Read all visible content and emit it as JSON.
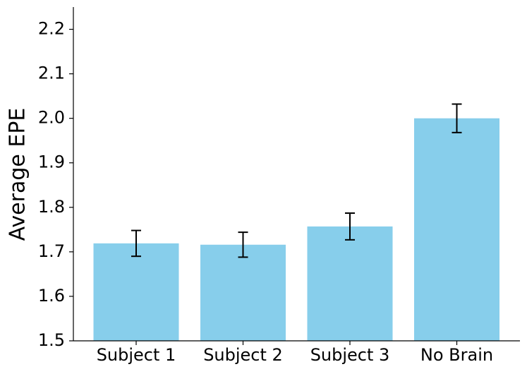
{
  "chart_data": {
    "type": "bar",
    "y_label": "Average EPE",
    "categories": [
      "Subject 1",
      "Subject 2",
      "Subject 3",
      "No Brain"
    ],
    "values": [
      1.719,
      1.716,
      1.757,
      2.0
    ],
    "errors": [
      0.029,
      0.028,
      0.03,
      0.032
    ],
    "color": "#87ceeb",
    "ylim": [
      1.5,
      2.25
    ],
    "yticks": [
      1.5,
      1.6,
      1.7,
      1.8,
      1.9,
      {
        "value": 2,
        "label": "2.0"
      },
      2.1,
      2.2
    ]
  }
}
